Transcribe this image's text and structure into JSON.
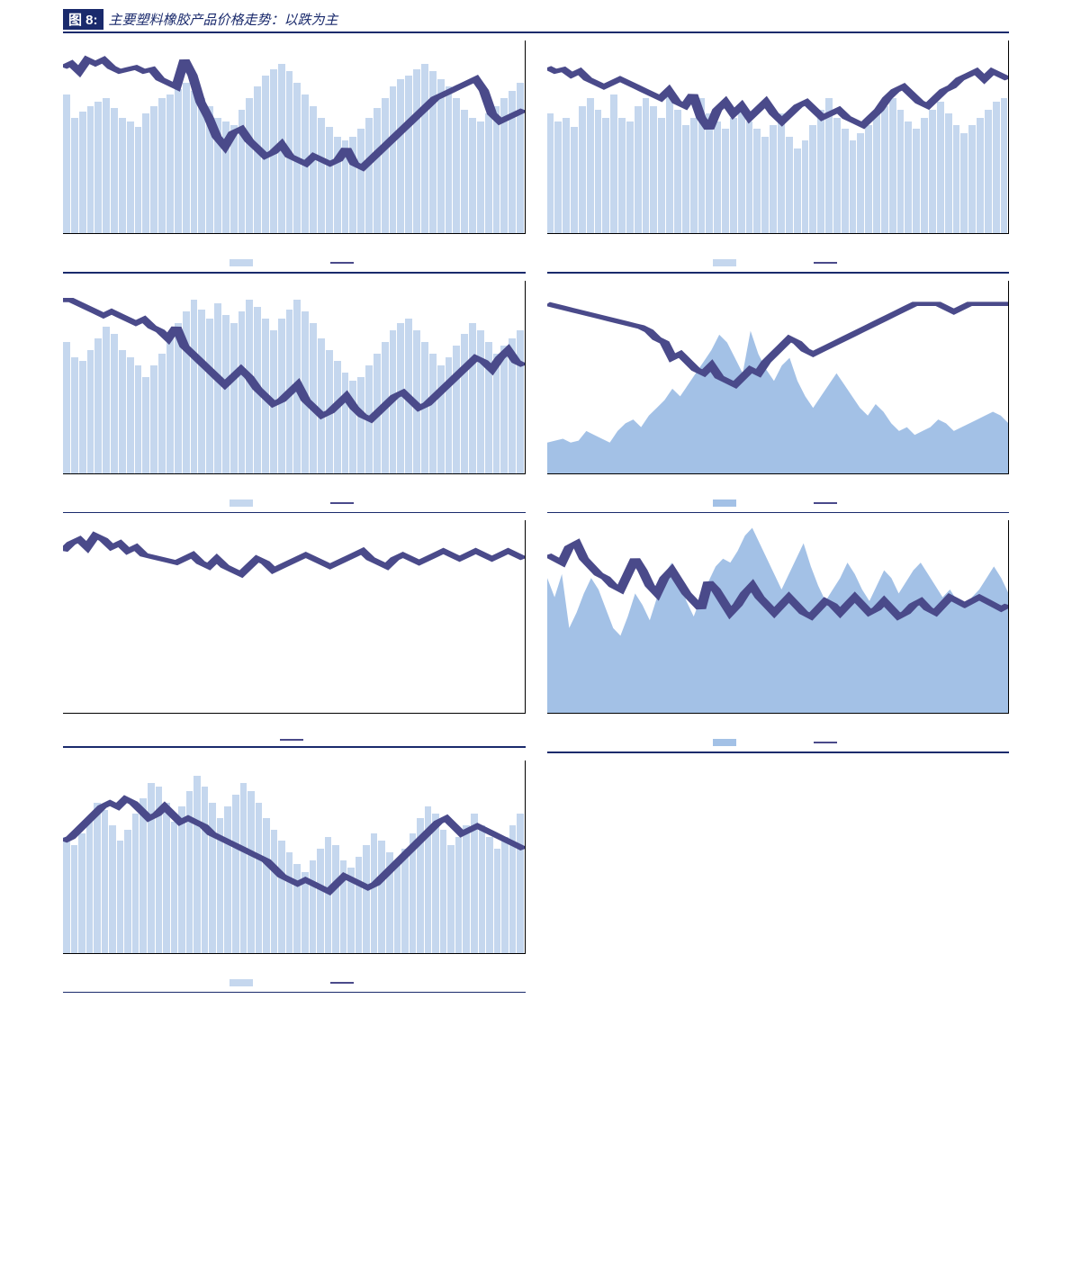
{
  "colors": {
    "brand": "#1a2a6c",
    "bar": "#c5d7ee",
    "area": "#a3c1e6",
    "line": "#4a4a8a",
    "rule": "#1a2a6c"
  },
  "header": {
    "badge": "图 8:",
    "title": "主要塑料橡胶产品价格走势：以跌为主"
  },
  "charts": [
    {
      "id": "c1",
      "mode": "bars+line",
      "bars": [
        72,
        60,
        63,
        66,
        68,
        70,
        65,
        60,
        58,
        55,
        62,
        66,
        70,
        72,
        75,
        78,
        74,
        70,
        66,
        60,
        58,
        56,
        64,
        70,
        76,
        82,
        85,
        88,
        84,
        78,
        72,
        66,
        60,
        55,
        50,
        48,
        50,
        54,
        60,
        65,
        70,
        76,
        80,
        82,
        85,
        88,
        84,
        80,
        76,
        70,
        64,
        60,
        58,
        62,
        66,
        70,
        74,
        78
      ],
      "line": [
        86,
        88,
        84,
        90,
        88,
        90,
        86,
        84,
        85,
        86,
        84,
        85,
        80,
        78,
        76,
        90,
        82,
        68,
        60,
        50,
        45,
        52,
        54,
        48,
        44,
        40,
        42,
        46,
        40,
        38,
        36,
        40,
        38,
        36,
        38,
        44,
        36,
        34,
        38,
        42,
        46,
        50,
        54,
        58,
        62,
        66,
        70,
        72,
        74,
        76,
        78,
        80,
        74,
        62,
        58,
        60,
        62,
        64
      ],
      "ylim": [
        0,
        100
      ],
      "legend_bar": "",
      "legend_line": ""
    },
    {
      "id": "c2",
      "mode": "bars+line",
      "bars": [
        62,
        58,
        60,
        55,
        66,
        70,
        64,
        60,
        72,
        60,
        58,
        66,
        70,
        66,
        60,
        72,
        64,
        56,
        60,
        70,
        62,
        58,
        54,
        60,
        64,
        58,
        54,
        50,
        56,
        62,
        50,
        44,
        48,
        56,
        64,
        70,
        60,
        54,
        48,
        52,
        56,
        62,
        66,
        70,
        64,
        58,
        54,
        60,
        64,
        68,
        62,
        56,
        52,
        56,
        60,
        64,
        68,
        70
      ],
      "line": [
        86,
        84,
        85,
        82,
        84,
        80,
        78,
        76,
        78,
        80,
        78,
        76,
        74,
        72,
        70,
        74,
        68,
        66,
        72,
        60,
        54,
        64,
        68,
        62,
        66,
        60,
        64,
        68,
        62,
        58,
        62,
        66,
        68,
        64,
        60,
        62,
        64,
        60,
        58,
        56,
        60,
        64,
        70,
        74,
        76,
        72,
        68,
        66,
        70,
        74,
        76,
        80,
        82,
        84,
        80,
        84,
        82,
        80
      ],
      "ylim": [
        0,
        100
      ],
      "legend_bar": "",
      "legend_line": ""
    },
    {
      "id": "c3",
      "mode": "bars+line",
      "bars": [
        68,
        60,
        58,
        64,
        70,
        76,
        72,
        64,
        60,
        56,
        50,
        56,
        62,
        70,
        78,
        84,
        90,
        85,
        80,
        88,
        82,
        78,
        84,
        90,
        86,
        80,
        74,
        80,
        85,
        90,
        84,
        78,
        70,
        64,
        58,
        52,
        48,
        50,
        56,
        62,
        68,
        74,
        78,
        80,
        74,
        68,
        62,
        56,
        60,
        66,
        72,
        78,
        74,
        68,
        62,
        66,
        70,
        74
      ],
      "line": [
        90,
        90,
        88,
        86,
        84,
        82,
        84,
        82,
        80,
        78,
        80,
        76,
        74,
        70,
        76,
        66,
        62,
        58,
        54,
        50,
        46,
        50,
        54,
        50,
        44,
        40,
        36,
        38,
        42,
        46,
        38,
        34,
        30,
        32,
        36,
        40,
        34,
        30,
        28,
        32,
        36,
        40,
        42,
        38,
        34,
        36,
        40,
        44,
        48,
        52,
        56,
        60,
        58,
        54,
        60,
        64,
        58,
        56
      ],
      "ylim": [
        0,
        100
      ],
      "legend_bar": "",
      "legend_line": ""
    },
    {
      "id": "c4",
      "mode": "area+line",
      "area": [
        16,
        17,
        18,
        16,
        17,
        22,
        20,
        18,
        16,
        22,
        26,
        28,
        24,
        30,
        34,
        38,
        44,
        40,
        46,
        52,
        58,
        64,
        72,
        68,
        60,
        52,
        74,
        62,
        54,
        48,
        56,
        60,
        48,
        40,
        34,
        40,
        46,
        52,
        46,
        40,
        34,
        30,
        36,
        32,
        26,
        22,
        24,
        20,
        22,
        24,
        28,
        26,
        22,
        24,
        26,
        28,
        30,
        32,
        30,
        26
      ],
      "line": [
        88,
        87,
        86,
        85,
        84,
        83,
        82,
        81,
        80,
        79,
        78,
        77,
        76,
        74,
        70,
        68,
        60,
        62,
        58,
        54,
        52,
        56,
        50,
        48,
        46,
        50,
        54,
        52,
        58,
        62,
        66,
        70,
        68,
        64,
        62,
        64,
        66,
        68,
        70,
        72,
        74,
        76,
        78,
        80,
        82,
        84,
        86,
        88,
        88,
        88,
        88,
        86,
        84,
        86,
        88,
        88,
        88,
        88,
        88,
        88
      ],
      "ylim": [
        0,
        100
      ],
      "legend_bar": "",
      "legend_line": ""
    },
    {
      "id": "c5",
      "mode": "line",
      "line": [
        84,
        88,
        90,
        86,
        92,
        90,
        86,
        88,
        84,
        86,
        82,
        81,
        80,
        79,
        78,
        80,
        82,
        78,
        76,
        80,
        76,
        74,
        72,
        76,
        80,
        78,
        74,
        76,
        78,
        80,
        82,
        80,
        78,
        76,
        78,
        80,
        82,
        84,
        80,
        78,
        76,
        80,
        82,
        80,
        78,
        80,
        82,
        84,
        82,
        80,
        82,
        84,
        82,
        80,
        82,
        84,
        82,
        80
      ],
      "ylim": [
        0,
        100
      ],
      "legend_bar": null,
      "legend_line": ""
    },
    {
      "id": "c6",
      "mode": "area+line",
      "area": [
        70,
        60,
        72,
        44,
        52,
        62,
        70,
        64,
        54,
        44,
        40,
        50,
        62,
        56,
        48,
        60,
        72,
        78,
        70,
        58,
        50,
        60,
        68,
        76,
        80,
        78,
        84,
        92,
        96,
        88,
        80,
        72,
        64,
        72,
        80,
        88,
        76,
        66,
        58,
        64,
        70,
        78,
        72,
        64,
        58,
        66,
        74,
        70,
        62,
        68,
        74,
        78,
        72,
        66,
        60,
        64,
        58,
        54,
        60,
        64,
        70,
        76,
        70,
        62
      ],
      "line": [
        82,
        80,
        78,
        86,
        88,
        80,
        76,
        72,
        70,
        66,
        64,
        72,
        80,
        74,
        66,
        62,
        70,
        74,
        68,
        62,
        58,
        54,
        68,
        64,
        58,
        52,
        56,
        62,
        66,
        60,
        56,
        52,
        56,
        60,
        56,
        52,
        50,
        54,
        58,
        56,
        52,
        56,
        60,
        56,
        52,
        54,
        58,
        54,
        50,
        52,
        56,
        58,
        54,
        52,
        56,
        60,
        58,
        56,
        58,
        60,
        58,
        56,
        54,
        56
      ],
      "ylim": [
        0,
        100
      ],
      "legend_bar": "",
      "legend_line": ""
    },
    {
      "id": "c7",
      "mode": "bars+line",
      "bars": [
        60,
        56,
        62,
        70,
        78,
        74,
        66,
        58,
        64,
        72,
        80,
        88,
        86,
        78,
        68,
        76,
        84,
        92,
        86,
        78,
        70,
        76,
        82,
        88,
        84,
        78,
        70,
        64,
        58,
        52,
        46,
        42,
        48,
        54,
        60,
        56,
        48,
        44,
        50,
        56,
        62,
        58,
        52,
        48,
        54,
        62,
        70,
        76,
        72,
        64,
        56,
        60,
        66,
        72,
        66,
        60,
        54,
        60,
        66,
        72
      ],
      "line": [
        58,
        60,
        64,
        68,
        72,
        76,
        78,
        76,
        80,
        78,
        74,
        70,
        72,
        76,
        72,
        68,
        70,
        68,
        66,
        62,
        60,
        58,
        56,
        54,
        52,
        50,
        48,
        44,
        40,
        38,
        36,
        38,
        36,
        34,
        32,
        36,
        40,
        38,
        36,
        34,
        36,
        40,
        44,
        48,
        52,
        56,
        60,
        64,
        68,
        70,
        66,
        62,
        64,
        66,
        64,
        62,
        60,
        58,
        56,
        54
      ],
      "ylim": [
        0,
        100
      ],
      "legend_bar": "",
      "legend_line": ""
    }
  ]
}
